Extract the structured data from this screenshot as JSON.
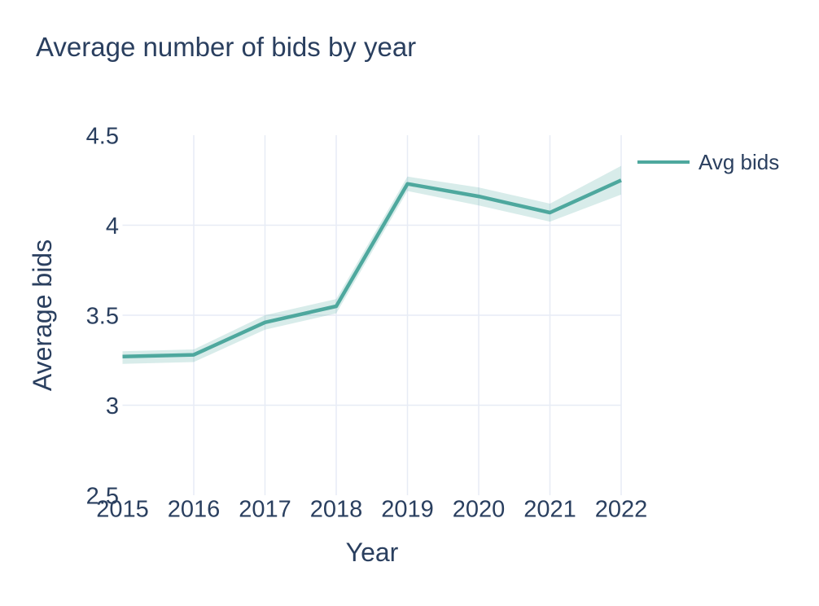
{
  "chart_data": {
    "type": "line",
    "title": "Average number of bids by year",
    "xlabel": "Year",
    "ylabel": "Average bids",
    "x": [
      2015,
      2016,
      2017,
      2018,
      2019,
      2020,
      2021,
      2022
    ],
    "xtick_labels": [
      "2015",
      "2016",
      "2017",
      "2018",
      "2019",
      "2020",
      "2021",
      "2022"
    ],
    "xlim": [
      2015,
      2022
    ],
    "yticks": [
      2.5,
      3,
      3.5,
      4,
      4.5
    ],
    "ytick_labels": [
      "2.5",
      "3",
      "3.5",
      "4",
      "4.5"
    ],
    "ylim": [
      2.5,
      4.5
    ],
    "grid": true,
    "legend_position": "top-right-outside",
    "series": [
      {
        "name": "Avg bids",
        "values": [
          3.27,
          3.28,
          3.46,
          3.55,
          4.23,
          4.16,
          4.07,
          4.25
        ],
        "band_upper": [
          3.3,
          3.31,
          3.5,
          3.59,
          4.27,
          4.21,
          4.12,
          4.33
        ],
        "band_lower": [
          3.23,
          3.24,
          3.42,
          3.51,
          4.19,
          4.11,
          4.02,
          4.17
        ]
      }
    ],
    "colors": {
      "text": "#2a3f5f",
      "grid": "#e7ecf5",
      "line": "#4ea89e",
      "band": "rgba(78,168,158,0.22)",
      "background": "#ffffff"
    }
  }
}
